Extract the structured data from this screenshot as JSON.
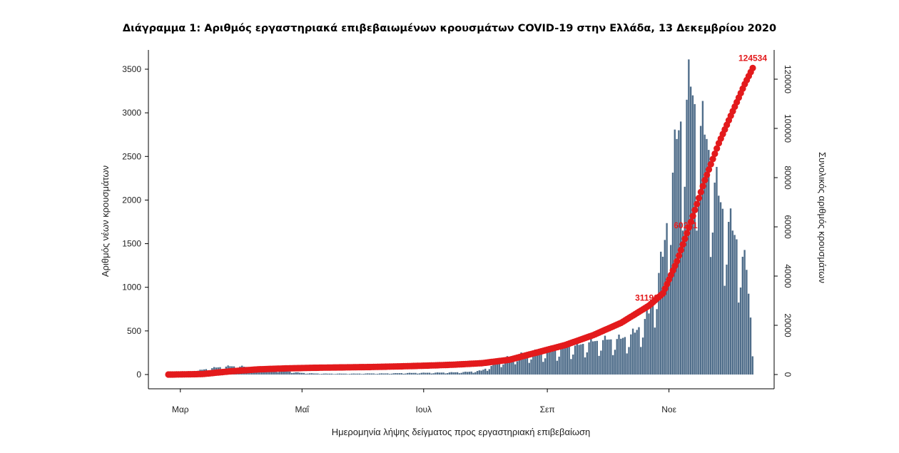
{
  "chart_data": {
    "type": "bar",
    "title": "Διάγραμμα 1: Αριθμός εργαστηριακά επιβεβαιωμένων κρουσμάτων COVID-19 στην Ελλάδα, 13 Δεκεμβρίου 2020",
    "xlabel": "Ημερομηνία λήψης δείγματος προς εργαστηριακή επιβεβαίωση",
    "ylabel": "Αριθμός νέων κρουσμάτων",
    "y2label": "Συνολικός αριθμός κρουσμάτων",
    "x_range": [
      "2020-02-24",
      "2020-12-13"
    ],
    "x_ticks": [
      {
        "date": "2020-03-01",
        "label": "Μαρ"
      },
      {
        "date": "2020-05-01",
        "label": "Μαΐ"
      },
      {
        "date": "2020-07-01",
        "label": "Ιουλ"
      },
      {
        "date": "2020-09-01",
        "label": "Σεπ"
      },
      {
        "date": "2020-11-01",
        "label": "Νοε"
      }
    ],
    "ylim": [
      0,
      3700
    ],
    "y_ticks": [
      0,
      500,
      1000,
      1500,
      2000,
      2500,
      3000,
      3500
    ],
    "y2lim": [
      0,
      129000
    ],
    "y2_ticks": [
      0,
      20000,
      40000,
      60000,
      80000,
      100000,
      120000
    ],
    "y2_tick_labels": [
      "0",
      "20000",
      "40000",
      "60000",
      "80000",
      "100000",
      "120000"
    ],
    "grid": false,
    "legend": "none",
    "colors": {
      "bars": "#4f6d8a",
      "cumulative": "#e31a1c"
    },
    "series": [
      {
        "type": "bar",
        "axis": "left",
        "weekly_points": [
          {
            "date": "2020-02-26",
            "value": 2
          },
          {
            "date": "2020-03-05",
            "value": 15
          },
          {
            "date": "2020-03-12",
            "value": 55
          },
          {
            "date": "2020-03-19",
            "value": 80
          },
          {
            "date": "2020-03-26",
            "value": 95
          },
          {
            "date": "2020-04-02",
            "value": 90
          },
          {
            "date": "2020-04-09",
            "value": 70
          },
          {
            "date": "2020-04-16",
            "value": 55
          },
          {
            "date": "2020-04-23",
            "value": 40
          },
          {
            "date": "2020-04-30",
            "value": 20
          },
          {
            "date": "2020-05-07",
            "value": 12
          },
          {
            "date": "2020-05-14",
            "value": 10
          },
          {
            "date": "2020-05-21",
            "value": 10
          },
          {
            "date": "2020-05-28",
            "value": 10
          },
          {
            "date": "2020-06-04",
            "value": 12
          },
          {
            "date": "2020-06-11",
            "value": 12
          },
          {
            "date": "2020-06-18",
            "value": 15
          },
          {
            "date": "2020-06-25",
            "value": 18
          },
          {
            "date": "2020-07-02",
            "value": 20
          },
          {
            "date": "2020-07-09",
            "value": 22
          },
          {
            "date": "2020-07-16",
            "value": 25
          },
          {
            "date": "2020-07-23",
            "value": 30
          },
          {
            "date": "2020-07-30",
            "value": 45
          },
          {
            "date": "2020-08-06",
            "value": 120
          },
          {
            "date": "2020-08-13",
            "value": 200
          },
          {
            "date": "2020-08-20",
            "value": 230
          },
          {
            "date": "2020-08-27",
            "value": 260
          },
          {
            "date": "2020-09-03",
            "value": 270
          },
          {
            "date": "2020-09-10",
            "value": 310
          },
          {
            "date": "2020-09-17",
            "value": 340
          },
          {
            "date": "2020-09-24",
            "value": 380
          },
          {
            "date": "2020-10-01",
            "value": 400
          },
          {
            "date": "2020-10-08",
            "value": 410
          },
          {
            "date": "2020-10-15",
            "value": 480
          },
          {
            "date": "2020-10-22",
            "value": 700
          },
          {
            "date": "2020-10-29",
            "value": 1350
          },
          {
            "date": "2020-11-05",
            "value": 2700
          },
          {
            "date": "2020-11-08",
            "value": 3000
          },
          {
            "date": "2020-11-12",
            "value": 3300
          },
          {
            "date": "2020-11-16",
            "value": 2900
          },
          {
            "date": "2020-11-20",
            "value": 2700
          },
          {
            "date": "2020-11-24",
            "value": 2200
          },
          {
            "date": "2020-11-28",
            "value": 1900
          },
          {
            "date": "2020-12-02",
            "value": 1700
          },
          {
            "date": "2020-12-06",
            "value": 1500
          },
          {
            "date": "2020-12-10",
            "value": 1200
          },
          {
            "date": "2020-12-13",
            "value": 380
          }
        ]
      },
      {
        "type": "line",
        "axis": "right",
        "weekly_points": [
          {
            "date": "2020-02-26",
            "value": 0
          },
          {
            "date": "2020-03-12",
            "value": 200
          },
          {
            "date": "2020-03-26",
            "value": 1300
          },
          {
            "date": "2020-04-09",
            "value": 2100
          },
          {
            "date": "2020-04-23",
            "value": 2500
          },
          {
            "date": "2020-05-07",
            "value": 2750
          },
          {
            "date": "2020-05-21",
            "value": 2900
          },
          {
            "date": "2020-06-04",
            "value": 3050
          },
          {
            "date": "2020-06-18",
            "value": 3300
          },
          {
            "date": "2020-07-02",
            "value": 3600
          },
          {
            "date": "2020-07-16",
            "value": 4000
          },
          {
            "date": "2020-07-30",
            "value": 4600
          },
          {
            "date": "2020-08-13",
            "value": 6000
          },
          {
            "date": "2020-08-27",
            "value": 9000
          },
          {
            "date": "2020-09-10",
            "value": 12000
          },
          {
            "date": "2020-09-24",
            "value": 16000
          },
          {
            "date": "2020-10-08",
            "value": 21000
          },
          {
            "date": "2020-10-22",
            "value": 28000
          },
          {
            "date": "2020-10-29",
            "value": 33000
          },
          {
            "date": "2020-11-05",
            "value": 46000
          },
          {
            "date": "2020-11-12",
            "value": 62000
          },
          {
            "date": "2020-11-19",
            "value": 79000
          },
          {
            "date": "2020-11-26",
            "value": 94000
          },
          {
            "date": "2020-12-03",
            "value": 107000
          },
          {
            "date": "2020-12-09",
            "value": 118000
          },
          {
            "date": "2020-12-13",
            "value": 124534
          }
        ]
      }
    ],
    "annotations": [
      {
        "date": "2020-12-13",
        "value": 124534,
        "text": "124534"
      },
      {
        "date": "2020-11-12",
        "value": 60231,
        "text": "60231"
      },
      {
        "date": "2020-10-31",
        "value": 31190,
        "text": "31190"
      }
    ]
  }
}
